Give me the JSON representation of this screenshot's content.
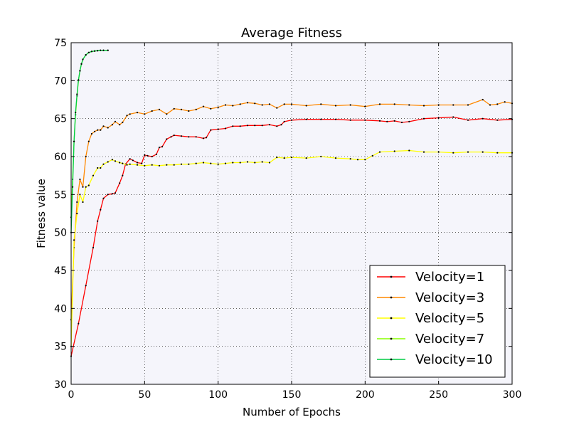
{
  "chart_data": {
    "type": "line",
    "title": "Average Fitness",
    "xlabel": "Number of Epochs",
    "ylabel": "Fitness value",
    "xlim": [
      0,
      300
    ],
    "ylim": [
      30,
      75
    ],
    "xticks": [
      0,
      50,
      100,
      150,
      200,
      250,
      300
    ],
    "yticks": [
      30,
      35,
      40,
      45,
      50,
      55,
      60,
      65,
      70,
      75
    ],
    "grid": true,
    "legend_position": "lower-right",
    "plot_background": "#f5f5fb",
    "series": [
      {
        "name": "Velocity=1",
        "color": "#ff0000",
        "x": [
          0,
          5,
          10,
          15,
          18,
          20,
          22,
          25,
          28,
          30,
          33,
          35,
          37,
          40,
          42,
          45,
          48,
          50,
          52,
          55,
          58,
          60,
          62,
          65,
          68,
          70,
          75,
          80,
          85,
          90,
          92,
          95,
          100,
          105,
          110,
          115,
          120,
          125,
          130,
          135,
          140,
          143,
          145,
          150,
          160,
          170,
          180,
          190,
          200,
          210,
          215,
          220,
          225,
          230,
          240,
          250,
          260,
          270,
          280,
          290,
          300
        ],
        "y": [
          33.7,
          38,
          43,
          48,
          51.5,
          53,
          54.5,
          55,
          55.1,
          55.2,
          56.5,
          57.5,
          59,
          59.7,
          59.5,
          59.2,
          59.1,
          60.2,
          60.1,
          60,
          60.3,
          61.2,
          61.3,
          62.3,
          62.6,
          62.8,
          62.7,
          62.6,
          62.6,
          62.4,
          62.5,
          63.5,
          63.6,
          63.7,
          64,
          64,
          64.1,
          64.1,
          64.1,
          64.2,
          64,
          64.2,
          64.6,
          64.8,
          64.9,
          64.9,
          64.9,
          64.8,
          64.8,
          64.7,
          64.6,
          64.7,
          64.5,
          64.6,
          65,
          65.1,
          65.2,
          64.8,
          65,
          64.8,
          64.9
        ]
      },
      {
        "name": "Velocity=3",
        "color": "#ff8800",
        "x": [
          0,
          2,
          4,
          6,
          8,
          10,
          12,
          14,
          16,
          18,
          20,
          22,
          25,
          28,
          30,
          33,
          35,
          38,
          40,
          45,
          50,
          55,
          60,
          65,
          70,
          75,
          80,
          85,
          90,
          95,
          100,
          105,
          110,
          115,
          120,
          125,
          130,
          135,
          140,
          145,
          150,
          160,
          170,
          180,
          190,
          200,
          210,
          220,
          230,
          240,
          250,
          260,
          270,
          280,
          285,
          290,
          295,
          300
        ],
        "y": [
          38.5,
          48,
          54,
          57,
          56,
          60,
          62,
          63,
          63.3,
          63.5,
          63.5,
          64,
          63.8,
          64.2,
          64.6,
          64.2,
          64.5,
          65.4,
          65.6,
          65.8,
          65.6,
          66,
          66.2,
          65.6,
          66.3,
          66.2,
          66,
          66.2,
          66.6,
          66.3,
          66.5,
          66.8,
          66.7,
          66.9,
          67.1,
          67,
          66.8,
          66.9,
          66.4,
          66.9,
          66.9,
          66.7,
          66.9,
          66.7,
          66.8,
          66.6,
          66.9,
          66.9,
          66.8,
          66.7,
          66.8,
          66.8,
          66.8,
          67.5,
          66.8,
          66.9,
          67.2,
          67
        ]
      },
      {
        "name": "Velocity=5",
        "color": "#ffff00",
        "x": [
          0,
          2,
          4,
          6,
          8,
          10,
          12,
          15,
          18,
          20,
          22,
          25,
          28,
          30,
          33,
          35,
          38,
          40,
          45,
          50,
          55,
          60,
          65,
          70,
          75,
          80,
          85,
          90,
          95,
          100,
          105,
          110,
          115,
          120,
          125,
          130,
          135,
          140,
          145,
          150,
          160,
          170,
          180,
          190,
          195,
          200,
          205,
          210,
          220,
          230,
          240,
          250,
          260,
          270,
          280,
          290,
          300
        ],
        "y": [
          35,
          49,
          52.5,
          55,
          54,
          56,
          56.2,
          57.5,
          58.5,
          58.5,
          59,
          59.3,
          59.6,
          59.4,
          59.2,
          59.1,
          58.9,
          59,
          58.9,
          58.8,
          58.9,
          58.8,
          58.9,
          58.9,
          59,
          59,
          59.1,
          59.2,
          59.1,
          59,
          59.1,
          59.2,
          59.2,
          59.3,
          59.2,
          59.3,
          59.2,
          59.9,
          59.8,
          59.9,
          59.8,
          60,
          59.8,
          59.7,
          59.6,
          59.6,
          60.1,
          60.6,
          60.7,
          60.8,
          60.6,
          60.6,
          60.5,
          60.6,
          60.6,
          60.5,
          60.5
        ]
      },
      {
        "name": "Velocity=7",
        "color": "#88ff00",
        "x": [
          0,
          1,
          2,
          3,
          4,
          5,
          6,
          7,
          8,
          10,
          12,
          14,
          16,
          18,
          20,
          22,
          25
        ],
        "y": [
          52,
          57,
          62,
          65.5,
          68,
          70,
          71.3,
          72.2,
          72.8,
          73.4,
          73.7,
          73.85,
          73.9,
          73.95,
          74,
          74,
          74
        ]
      },
      {
        "name": "Velocity=10",
        "color": "#00cc44",
        "x": [
          0,
          1,
          2,
          3,
          4,
          5,
          6,
          7,
          8,
          10,
          12,
          14,
          16,
          18,
          20,
          22,
          25
        ],
        "y": [
          50,
          56,
          62,
          65.8,
          68.2,
          70.1,
          71.3,
          72.2,
          72.8,
          73.4,
          73.7,
          73.85,
          73.9,
          73.95,
          74,
          74,
          74
        ]
      }
    ]
  }
}
